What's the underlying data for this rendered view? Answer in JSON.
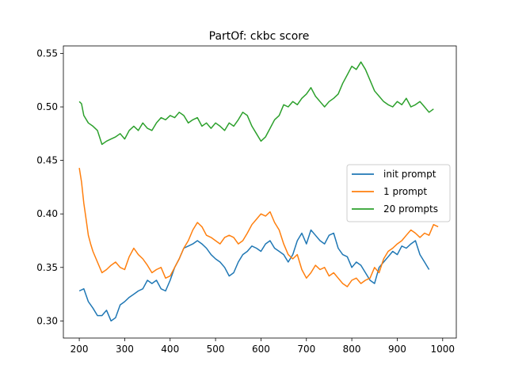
{
  "chart_data": {
    "type": "line",
    "title": "PartOf: ckbc score",
    "xlabel": "",
    "ylabel": "",
    "xlim": [
      165,
      1030
    ],
    "ylim": [
      0.284,
      0.557
    ],
    "xticks": [
      200,
      300,
      400,
      500,
      600,
      700,
      800,
      900,
      1000
    ],
    "yticks": [
      0.3,
      0.35,
      0.4,
      0.45,
      0.5,
      0.55
    ],
    "ytick_labels": [
      "0.30",
      "0.35",
      "0.40",
      "0.45",
      "0.50",
      "0.55"
    ],
    "grid": false,
    "legend_position": "center-right",
    "series": [
      {
        "name": "init prompt",
        "color": "#1f77b4",
        "x": [
          200,
          210,
          220,
          230,
          240,
          250,
          260,
          270,
          280,
          290,
          300,
          310,
          320,
          330,
          340,
          350,
          360,
          370,
          380,
          390,
          400,
          410,
          420,
          430,
          440,
          450,
          460,
          470,
          480,
          490,
          500,
          510,
          520,
          530,
          540,
          550,
          560,
          570,
          580,
          590,
          600,
          610,
          620,
          630,
          640,
          650,
          660,
          670,
          680,
          690,
          700,
          710,
          720,
          730,
          740,
          750,
          760,
          770,
          780,
          790,
          800,
          810,
          820,
          830,
          840,
          850,
          860,
          870,
          880,
          890,
          900,
          910,
          920,
          930,
          940,
          950,
          960,
          970
        ],
        "y": [
          0.328,
          0.33,
          0.318,
          0.312,
          0.305,
          0.305,
          0.31,
          0.3,
          0.303,
          0.315,
          0.318,
          0.322,
          0.325,
          0.328,
          0.33,
          0.338,
          0.335,
          0.338,
          0.33,
          0.328,
          0.338,
          0.35,
          0.358,
          0.368,
          0.37,
          0.372,
          0.375,
          0.372,
          0.368,
          0.362,
          0.358,
          0.355,
          0.35,
          0.342,
          0.345,
          0.355,
          0.362,
          0.365,
          0.37,
          0.368,
          0.365,
          0.372,
          0.375,
          0.368,
          0.365,
          0.362,
          0.355,
          0.362,
          0.375,
          0.382,
          0.372,
          0.385,
          0.38,
          0.375,
          0.372,
          0.38,
          0.382,
          0.368,
          0.362,
          0.36,
          0.35,
          0.355,
          0.352,
          0.345,
          0.338,
          0.335,
          0.35,
          0.355,
          0.36,
          0.365,
          0.362,
          0.37,
          0.368,
          0.372,
          0.375,
          0.362,
          0.355,
          0.348
        ]
      },
      {
        "name": "1 prompt",
        "color": "#ff7f0e",
        "x": [
          200,
          205,
          210,
          215,
          220,
          225,
          230,
          240,
          250,
          260,
          270,
          280,
          290,
          300,
          310,
          320,
          330,
          340,
          350,
          360,
          370,
          380,
          390,
          400,
          410,
          420,
          430,
          440,
          450,
          460,
          470,
          480,
          490,
          500,
          510,
          520,
          530,
          540,
          550,
          560,
          570,
          580,
          590,
          600,
          610,
          620,
          630,
          640,
          650,
          660,
          670,
          680,
          690,
          700,
          710,
          720,
          730,
          740,
          750,
          760,
          770,
          780,
          790,
          800,
          810,
          820,
          830,
          840,
          850,
          860,
          870,
          880,
          890,
          900,
          910,
          920,
          930,
          940,
          950,
          960,
          970,
          980,
          990
        ],
        "y": [
          0.443,
          0.43,
          0.41,
          0.395,
          0.38,
          0.372,
          0.365,
          0.355,
          0.345,
          0.348,
          0.352,
          0.355,
          0.35,
          0.348,
          0.36,
          0.368,
          0.362,
          0.358,
          0.352,
          0.345,
          0.348,
          0.35,
          0.34,
          0.342,
          0.35,
          0.358,
          0.368,
          0.375,
          0.385,
          0.392,
          0.388,
          0.38,
          0.378,
          0.375,
          0.372,
          0.378,
          0.38,
          0.378,
          0.372,
          0.375,
          0.382,
          0.39,
          0.395,
          0.4,
          0.398,
          0.402,
          0.392,
          0.385,
          0.372,
          0.362,
          0.358,
          0.362,
          0.348,
          0.34,
          0.345,
          0.352,
          0.348,
          0.35,
          0.342,
          0.345,
          0.34,
          0.335,
          0.332,
          0.338,
          0.34,
          0.335,
          0.338,
          0.34,
          0.35,
          0.345,
          0.358,
          0.365,
          0.368,
          0.372,
          0.375,
          0.38,
          0.385,
          0.382,
          0.378,
          0.382,
          0.38,
          0.39,
          0.388
        ]
      },
      {
        "name": "20 prompts",
        "color": "#2ca02c",
        "x": [
          200,
          205,
          210,
          220,
          230,
          240,
          250,
          260,
          270,
          280,
          290,
          300,
          310,
          320,
          330,
          340,
          350,
          360,
          370,
          380,
          390,
          400,
          410,
          420,
          430,
          440,
          450,
          460,
          470,
          480,
          490,
          500,
          510,
          520,
          530,
          540,
          550,
          560,
          570,
          580,
          590,
          600,
          610,
          620,
          630,
          640,
          650,
          660,
          670,
          680,
          690,
          700,
          710,
          720,
          730,
          740,
          750,
          760,
          770,
          780,
          790,
          800,
          810,
          820,
          830,
          840,
          850,
          860,
          870,
          880,
          890,
          900,
          910,
          920,
          930,
          940,
          950,
          960,
          970,
          980
        ],
        "y": [
          0.505,
          0.503,
          0.492,
          0.485,
          0.482,
          0.478,
          0.465,
          0.468,
          0.47,
          0.472,
          0.475,
          0.47,
          0.478,
          0.482,
          0.478,
          0.485,
          0.48,
          0.478,
          0.485,
          0.49,
          0.488,
          0.492,
          0.49,
          0.495,
          0.492,
          0.485,
          0.488,
          0.49,
          0.482,
          0.485,
          0.48,
          0.485,
          0.482,
          0.478,
          0.485,
          0.482,
          0.488,
          0.495,
          0.492,
          0.482,
          0.475,
          0.468,
          0.472,
          0.48,
          0.488,
          0.492,
          0.502,
          0.5,
          0.505,
          0.502,
          0.508,
          0.512,
          0.518,
          0.51,
          0.505,
          0.5,
          0.505,
          0.508,
          0.512,
          0.522,
          0.53,
          0.538,
          0.535,
          0.542,
          0.535,
          0.525,
          0.515,
          0.51,
          0.505,
          0.502,
          0.5,
          0.505,
          0.502,
          0.508,
          0.5,
          0.502,
          0.505,
          0.5,
          0.495,
          0.498
        ]
      }
    ]
  }
}
